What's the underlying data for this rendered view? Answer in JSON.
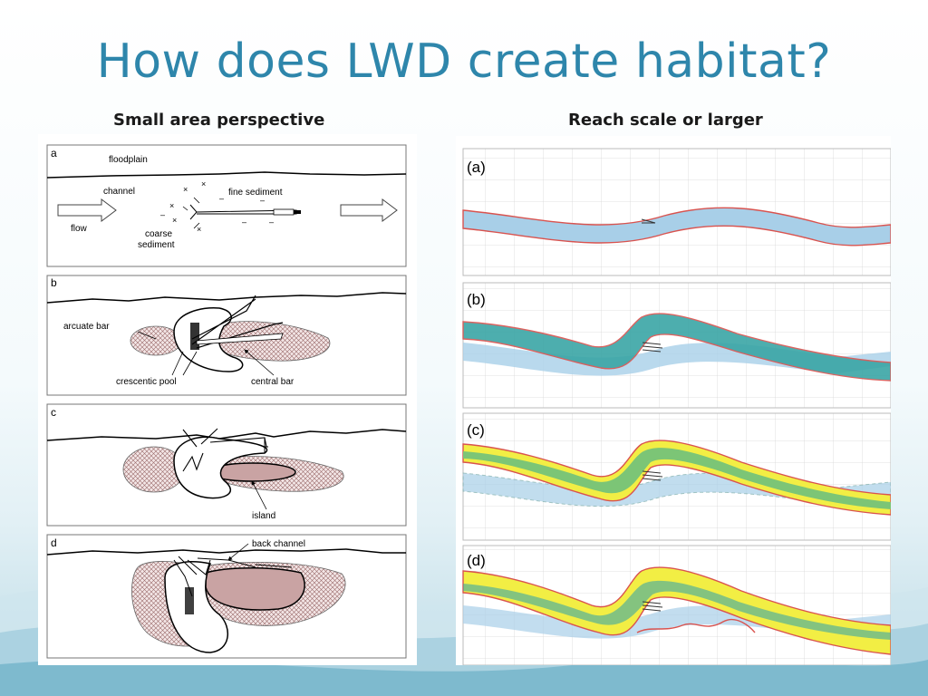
{
  "title": "How does LWD create habitat?",
  "left_column": {
    "heading": "Small area perspective",
    "panels": [
      {
        "letter": "a",
        "labels": {
          "floodplain": "floodplain",
          "channel": "channel",
          "fine": "fine sediment",
          "flow": "flow",
          "coarse1": "coarse",
          "coarse2": "sediment"
        }
      },
      {
        "letter": "b",
        "labels": {
          "arcuate": "arcuate bar",
          "crescentic": "crescentic pool",
          "central": "central bar"
        }
      },
      {
        "letter": "c",
        "labels": {
          "island": "island"
        }
      },
      {
        "letter": "d",
        "labels": {
          "back": "back channel"
        }
      }
    ]
  },
  "right_column": {
    "heading": "Reach scale or larger",
    "panels": [
      "(a)",
      "(b)",
      "(c)",
      "(d)"
    ]
  },
  "colors": {
    "title": "#2e86ab",
    "channel_fill": "#a8cfe8",
    "bank_line": "#d9534f",
    "teal": "#3aa6a6",
    "green": "#7cc576",
    "yellow": "#f2ee44",
    "hatch": "#b38080"
  }
}
